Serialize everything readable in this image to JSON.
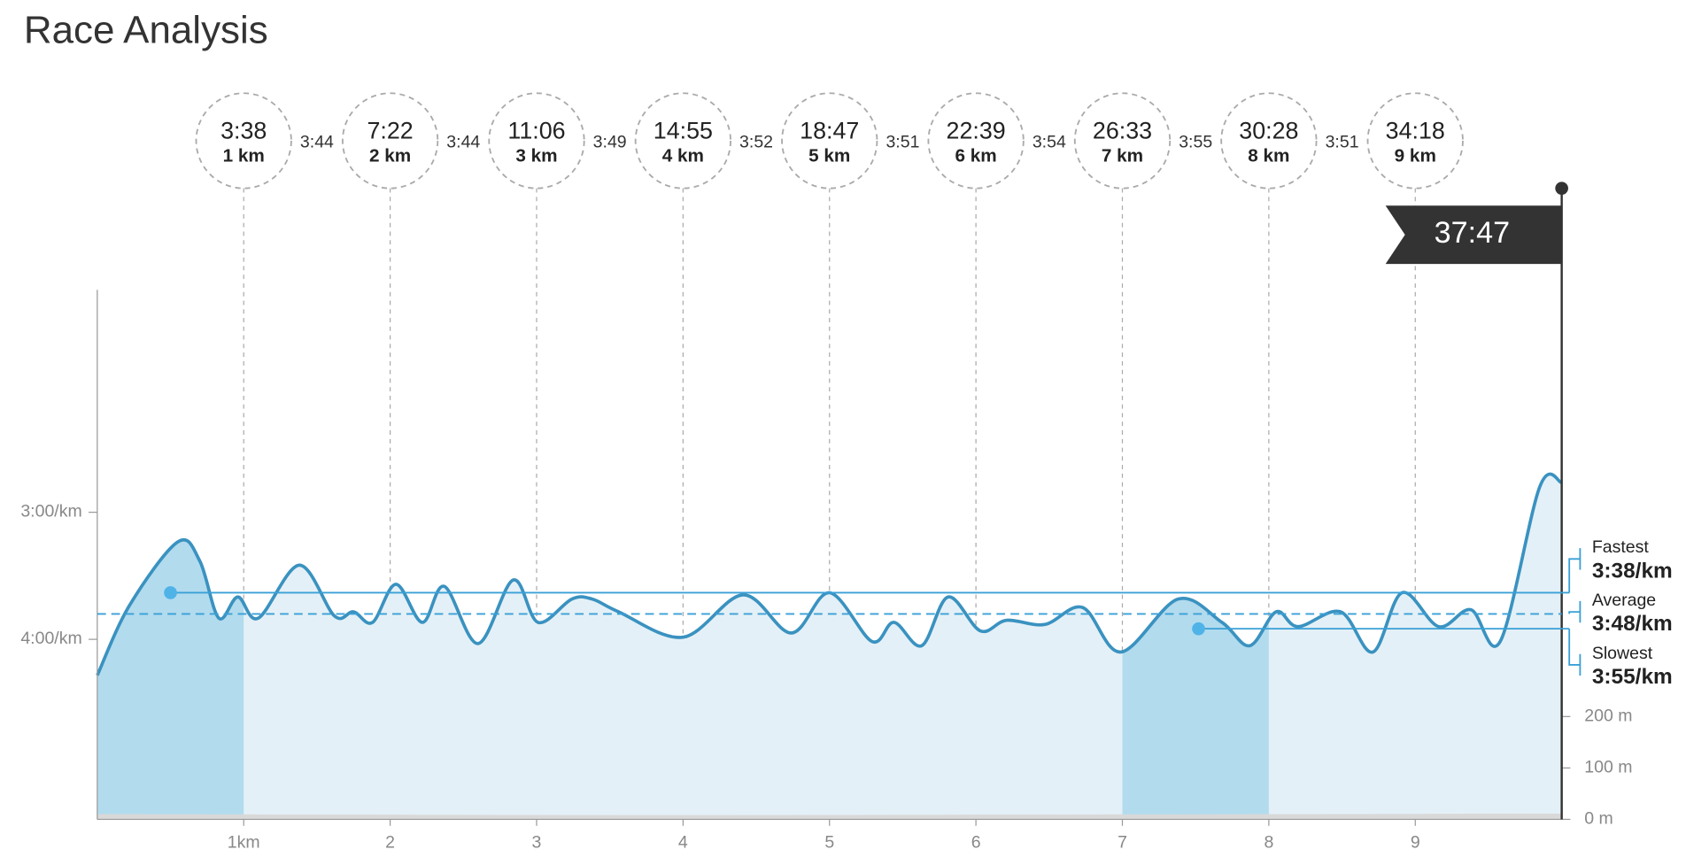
{
  "chart_data": {
    "type": "line",
    "title": "Race Analysis",
    "xlim": [
      0,
      10
    ],
    "xticks": [
      {
        "value": 1,
        "label": "1km"
      },
      2,
      3,
      4,
      5,
      6,
      7,
      8,
      9
    ],
    "ylim": [
      325,
      75
    ],
    "yticks": [
      {
        "value": 180,
        "label": "3:00/km"
      },
      {
        "value": 240,
        "label": "4:00/km"
      }
    ],
    "y2lim": [
      0,
      1030
    ],
    "y2ticks": [
      {
        "value": 0,
        "label": "0 m"
      },
      {
        "value": 100,
        "label": "100 m"
      },
      {
        "value": 200,
        "label": "200 m"
      }
    ],
    "series": [
      {
        "color": "#3a92c0",
        "x": [
          0,
          0.22,
          0.55,
          0.7,
          0.83,
          0.96,
          1.1,
          1.38,
          1.62,
          1.75,
          1.88,
          2.04,
          2.22,
          2.37,
          2.6,
          2.84,
          3.01,
          3.24,
          3.38,
          3.56,
          4.0,
          4.41,
          4.74,
          5.0,
          5.29,
          5.44,
          5.63,
          5.81,
          6.03,
          6.21,
          6.47,
          6.73,
          6.99,
          7.38,
          7.68,
          7.87,
          8.05,
          8.2,
          8.49,
          8.71,
          8.91,
          9.16,
          9.38,
          9.58,
          9.85,
          10
        ],
        "values": [
          257,
          224,
          194,
          203,
          230,
          220,
          230,
          205,
          229,
          227,
          232,
          214,
          232,
          215,
          242,
          212,
          232,
          221,
          221,
          227,
          239,
          219,
          237,
          218,
          241,
          232,
          243,
          220,
          236,
          231,
          233,
          225,
          246,
          221,
          232,
          243,
          227,
          234,
          227,
          246,
          218,
          234,
          226,
          241,
          168,
          166
        ]
      },
      {
        "color": "#d9d9d9",
        "axis": "y2",
        "x": [
          0,
          2,
          4,
          6,
          8,
          10
        ],
        "values": [
          10,
          9,
          8,
          9,
          10,
          11
        ]
      }
    ],
    "splits": [
      {
        "x": 1,
        "time": "3:38",
        "distance": "1 km"
      },
      {
        "x": 2,
        "time": "7:22",
        "distance": "2 km"
      },
      {
        "x": 3,
        "time": "11:06",
        "distance": "3 km"
      },
      {
        "x": 4,
        "time": "14:55",
        "distance": "4 km"
      },
      {
        "x": 5,
        "time": "18:47",
        "distance": "5 km"
      },
      {
        "x": 6,
        "time": "22:39",
        "distance": "6 km"
      },
      {
        "x": 7,
        "time": "26:33",
        "distance": "7 km"
      },
      {
        "x": 8,
        "time": "30:28",
        "distance": "8 km"
      },
      {
        "x": 9,
        "time": "34:18",
        "distance": "9 km"
      }
    ],
    "lap_paces": [
      "3:44",
      "3:44",
      "3:49",
      "3:52",
      "3:51",
      "3:54",
      "3:55",
      "3:51"
    ],
    "finish": {
      "x": 10,
      "time": "37:47"
    },
    "annotations": [
      {
        "label": "Fastest",
        "value": 218,
        "value_label": "3:38/km",
        "x": 0.5
      },
      {
        "label": "Average",
        "value": 228,
        "value_label": "3:48/km"
      },
      {
        "label": "Slowest",
        "value": 235,
        "value_label": "3:55/km",
        "x": 7.52
      }
    ]
  }
}
